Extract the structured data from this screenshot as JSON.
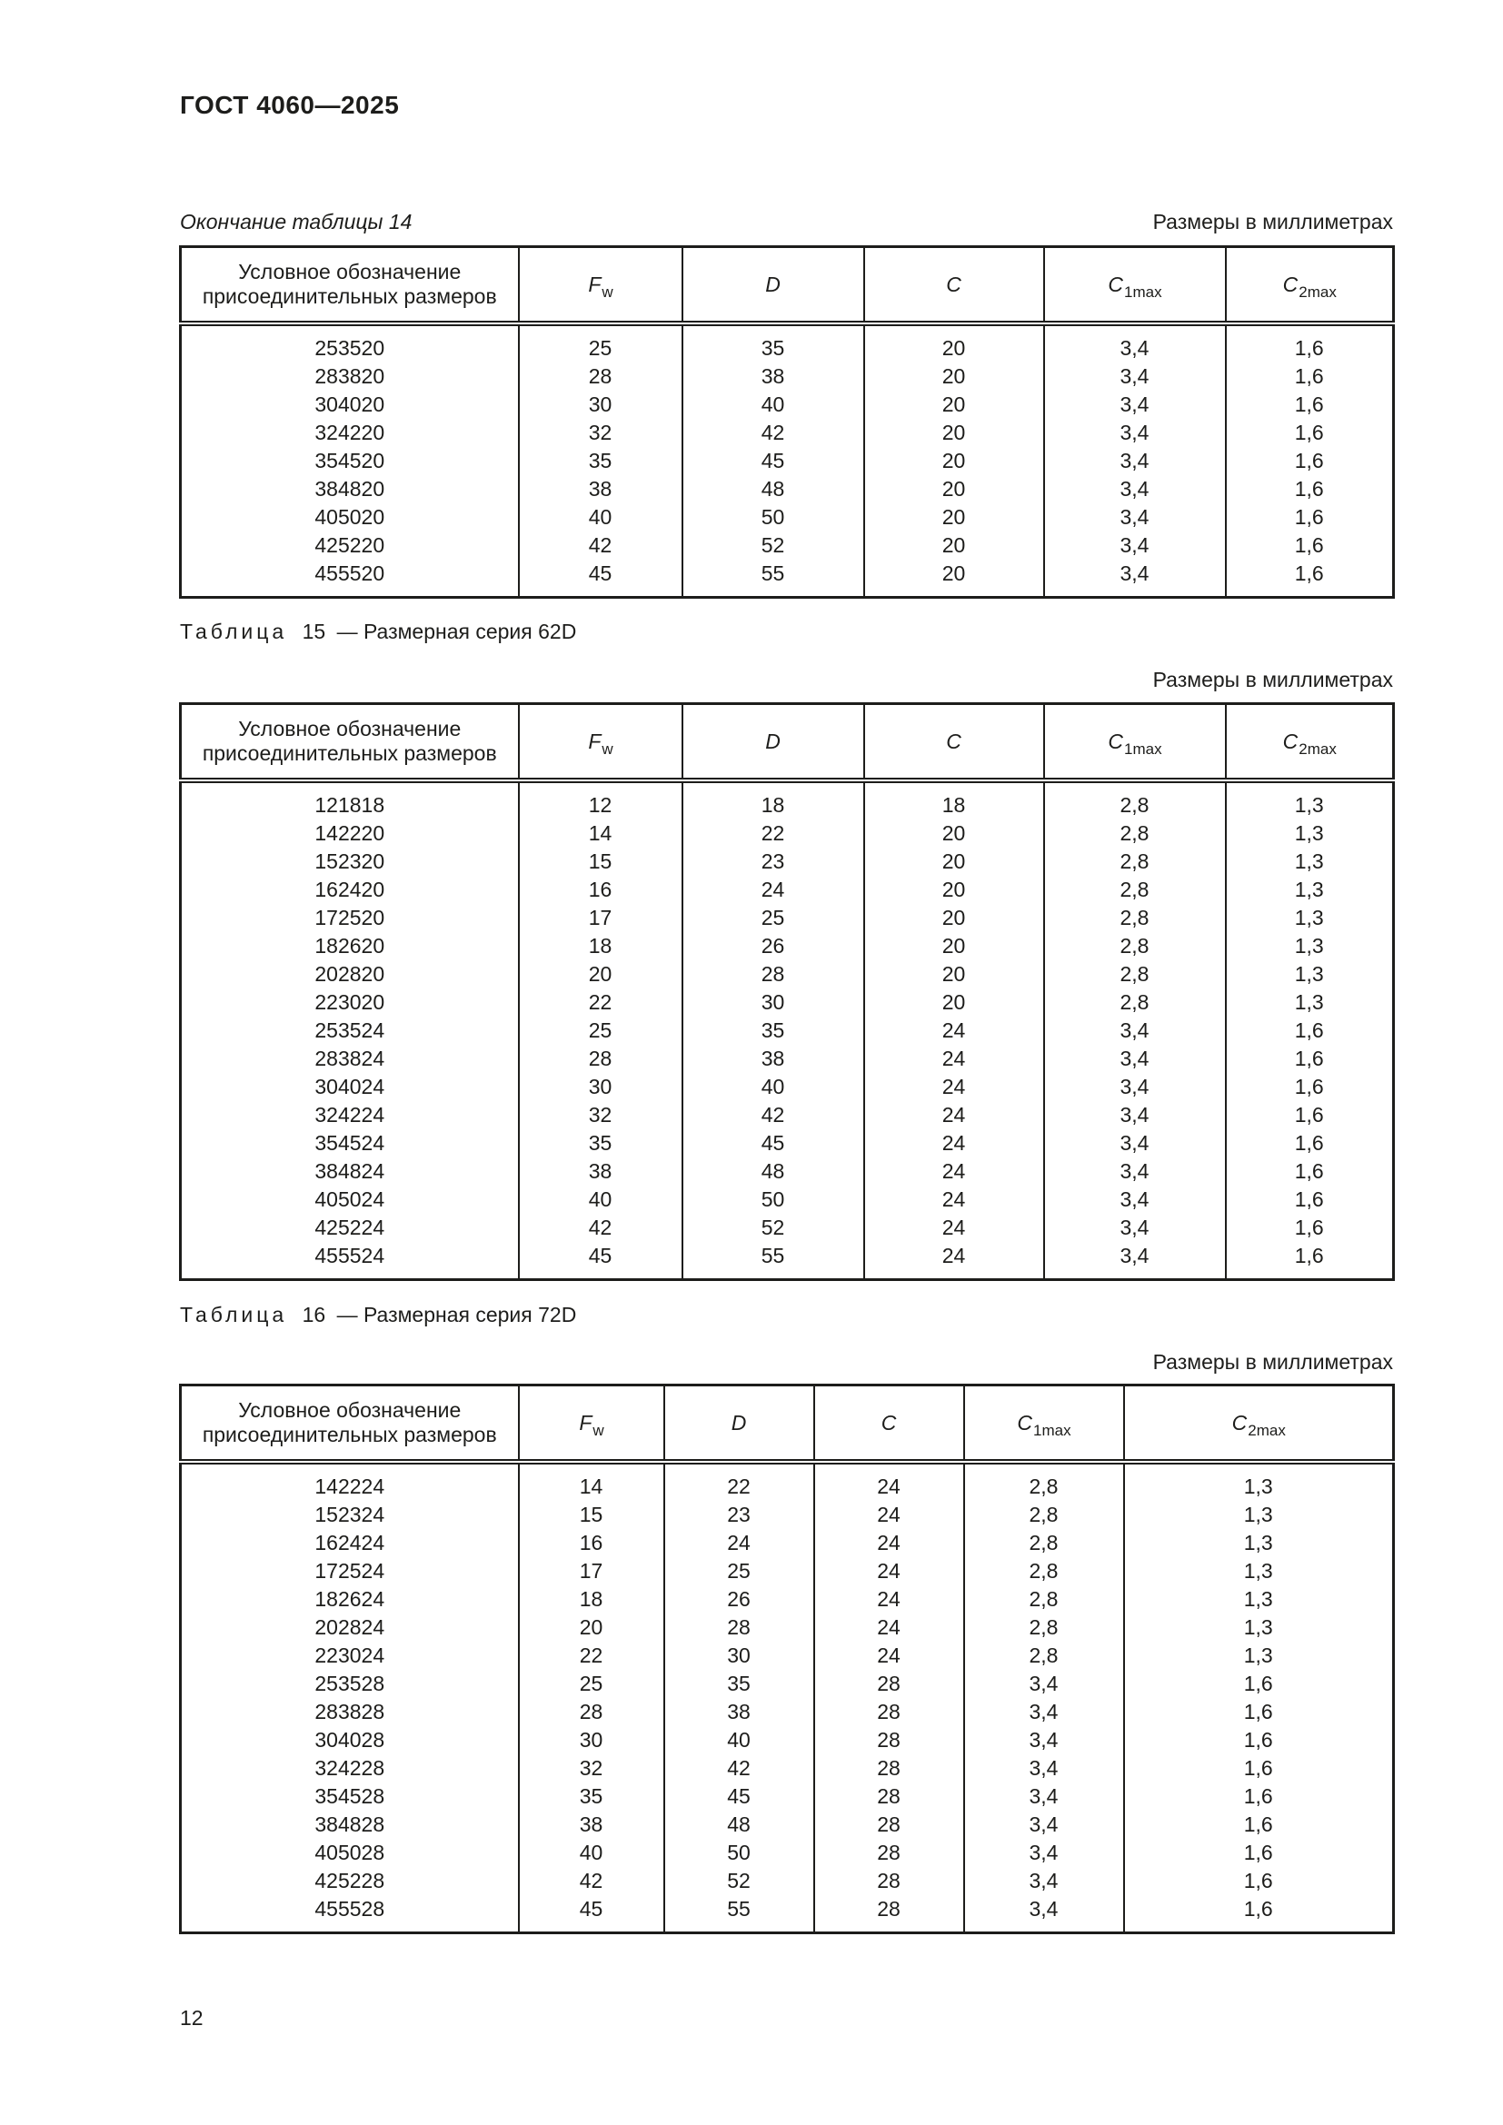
{
  "page": {
    "title": "ГОСТ 4060—2025",
    "units_note": "Размеры в миллиметрах",
    "page_number": "12"
  },
  "column_headers": {
    "designation": "Условное обозначение присоединительных размеров",
    "fw_main": "F",
    "fw_sub": "w",
    "d": "D",
    "c": "C",
    "c1_main": "C",
    "c1_sub": "1max",
    "c2_main": "C",
    "c2_sub": "2max"
  },
  "table14": {
    "caption": "Окончание таблицы 14",
    "rows": [
      [
        "253520",
        "25",
        "35",
        "20",
        "3,4",
        "1,6"
      ],
      [
        "283820",
        "28",
        "38",
        "20",
        "3,4",
        "1,6"
      ],
      [
        "304020",
        "30",
        "40",
        "20",
        "3,4",
        "1,6"
      ],
      [
        "324220",
        "32",
        "42",
        "20",
        "3,4",
        "1,6"
      ],
      [
        "354520",
        "35",
        "45",
        "20",
        "3,4",
        "1,6"
      ],
      [
        "384820",
        "38",
        "48",
        "20",
        "3,4",
        "1,6"
      ],
      [
        "405020",
        "40",
        "50",
        "20",
        "3,4",
        "1,6"
      ],
      [
        "425220",
        "42",
        "52",
        "20",
        "3,4",
        "1,6"
      ],
      [
        "455520",
        "45",
        "55",
        "20",
        "3,4",
        "1,6"
      ]
    ]
  },
  "table15": {
    "caption_label": "Таблица",
    "caption_number": "15",
    "caption_title": "— Размерная серия 62D",
    "rows": [
      [
        "121818",
        "12",
        "18",
        "18",
        "2,8",
        "1,3"
      ],
      [
        "142220",
        "14",
        "22",
        "20",
        "2,8",
        "1,3"
      ],
      [
        "152320",
        "15",
        "23",
        "20",
        "2,8",
        "1,3"
      ],
      [
        "162420",
        "16",
        "24",
        "20",
        "2,8",
        "1,3"
      ],
      [
        "172520",
        "17",
        "25",
        "20",
        "2,8",
        "1,3"
      ],
      [
        "182620",
        "18",
        "26",
        "20",
        "2,8",
        "1,3"
      ],
      [
        "202820",
        "20",
        "28",
        "20",
        "2,8",
        "1,3"
      ],
      [
        "223020",
        "22",
        "30",
        "20",
        "2,8",
        "1,3"
      ],
      [
        "253524",
        "25",
        "35",
        "24",
        "3,4",
        "1,6"
      ],
      [
        "283824",
        "28",
        "38",
        "24",
        "3,4",
        "1,6"
      ],
      [
        "304024",
        "30",
        "40",
        "24",
        "3,4",
        "1,6"
      ],
      [
        "324224",
        "32",
        "42",
        "24",
        "3,4",
        "1,6"
      ],
      [
        "354524",
        "35",
        "45",
        "24",
        "3,4",
        "1,6"
      ],
      [
        "384824",
        "38",
        "48",
        "24",
        "3,4",
        "1,6"
      ],
      [
        "405024",
        "40",
        "50",
        "24",
        "3,4",
        "1,6"
      ],
      [
        "425224",
        "42",
        "52",
        "24",
        "3,4",
        "1,6"
      ],
      [
        "455524",
        "45",
        "55",
        "24",
        "3,4",
        "1,6"
      ]
    ]
  },
  "table16": {
    "caption_label": "Таблица",
    "caption_number": "16",
    "caption_title": "— Размерная серия 72D",
    "rows": [
      [
        "142224",
        "14",
        "22",
        "24",
        "2,8",
        "1,3"
      ],
      [
        "152324",
        "15",
        "23",
        "24",
        "2,8",
        "1,3"
      ],
      [
        "162424",
        "16",
        "24",
        "24",
        "2,8",
        "1,3"
      ],
      [
        "172524",
        "17",
        "25",
        "24",
        "2,8",
        "1,3"
      ],
      [
        "182624",
        "18",
        "26",
        "24",
        "2,8",
        "1,3"
      ],
      [
        "202824",
        "20",
        "28",
        "24",
        "2,8",
        "1,3"
      ],
      [
        "223024",
        "22",
        "30",
        "24",
        "2,8",
        "1,3"
      ],
      [
        "253528",
        "25",
        "35",
        "28",
        "3,4",
        "1,6"
      ],
      [
        "283828",
        "28",
        "38",
        "28",
        "3,4",
        "1,6"
      ],
      [
        "304028",
        "30",
        "40",
        "28",
        "3,4",
        "1,6"
      ],
      [
        "324228",
        "32",
        "42",
        "28",
        "3,4",
        "1,6"
      ],
      [
        "354528",
        "35",
        "45",
        "28",
        "3,4",
        "1,6"
      ],
      [
        "384828",
        "38",
        "48",
        "28",
        "3,4",
        "1,6"
      ],
      [
        "405028",
        "40",
        "50",
        "28",
        "3,4",
        "1,6"
      ],
      [
        "425228",
        "42",
        "52",
        "28",
        "3,4",
        "1,6"
      ],
      [
        "455528",
        "45",
        "55",
        "28",
        "3,4",
        "1,6"
      ]
    ]
  }
}
